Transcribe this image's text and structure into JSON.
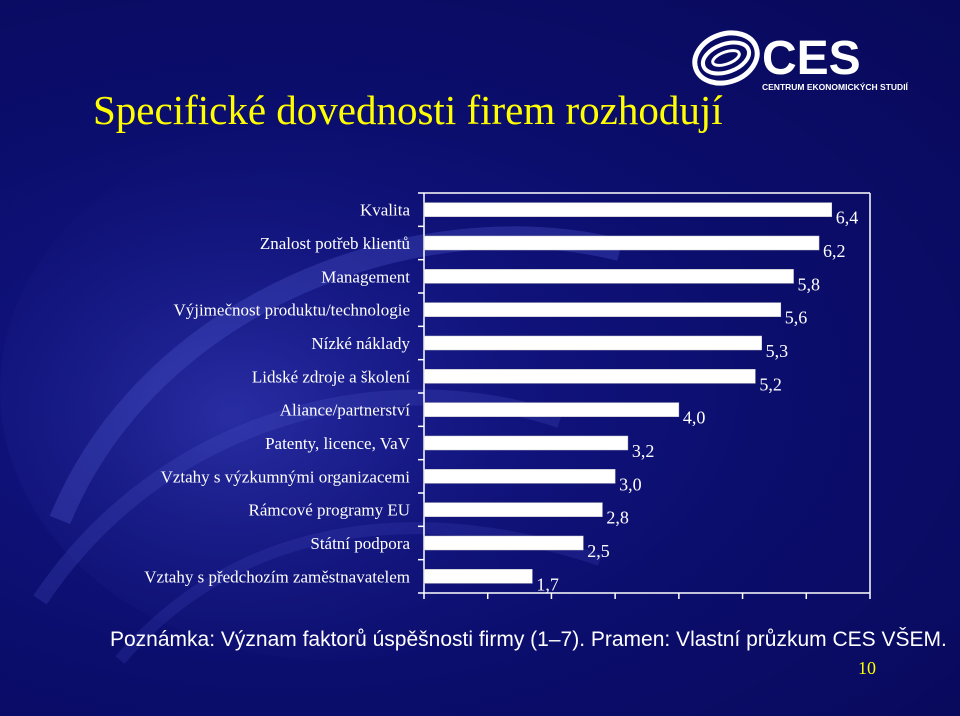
{
  "slide": {
    "title": "Specifické dovednosti firem rozhodují",
    "note": "Poznámka: Význam faktorů úspěšnosti firmy (1–7). Pramen: Vlastní průzkum CES VŠEM.",
    "page_number": "10"
  },
  "logo": {
    "text": "CES",
    "subtitle": "CENTRUM EKONOMICKÝCH STUDIÍ"
  },
  "colors": {
    "background": "#0b0d6b",
    "title": "#ffff00",
    "bars": "#ffffff",
    "text": "#ffffff"
  },
  "chart_data": {
    "type": "bar",
    "orientation": "horizontal",
    "title": "",
    "xlabel": "",
    "ylabel": "",
    "xlim": [
      0,
      7
    ],
    "categories": [
      "Kvalita",
      "Znalost potřeb klientů",
      "Management",
      "Výjimečnost produktu/technologie",
      "Nízké náklady",
      "Lidské zdroje a školení",
      "Aliance/partnerství",
      "Patenty, licence, VaV",
      "Vztahy s výzkumnými organizacemi",
      "Rámcové programy EU",
      "Státní podpora",
      "Vztahy s předchozím zaměstnavatelem"
    ],
    "values": [
      6.4,
      6.2,
      5.8,
      5.6,
      5.3,
      5.2,
      4.0,
      3.2,
      3.0,
      2.8,
      2.5,
      1.7
    ],
    "value_labels": [
      "6,4",
      "6,2",
      "5,8",
      "5,6",
      "5,3",
      "5,2",
      "4,0",
      "3,2",
      "3,0",
      "2,8",
      "2,5",
      "1,7"
    ],
    "grid": false,
    "legend": "none"
  }
}
